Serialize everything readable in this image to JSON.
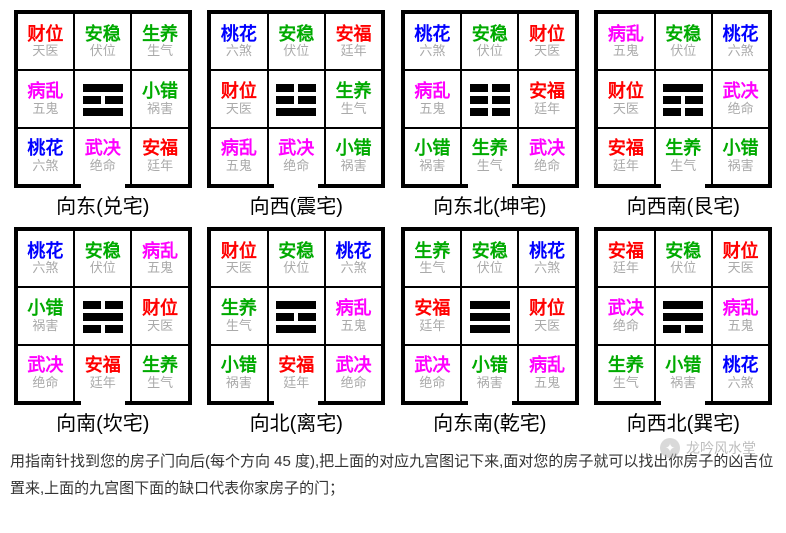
{
  "colors": {
    "red": "#ff0000",
    "green": "#00aa00",
    "blue": "#0000ff",
    "magenta": "#ff00ff",
    "gray": "#aaaaaa",
    "black": "#000000"
  },
  "trigram_bars": {
    "dui": [
      [
        1
      ],
      [
        1,
        1
      ],
      [
        1
      ]
    ],
    "zhen": [
      [
        1,
        1
      ],
      [
        1,
        1
      ],
      [
        1
      ]
    ],
    "kun": [
      [
        1,
        1
      ],
      [
        1,
        1
      ],
      [
        1,
        1
      ]
    ],
    "gen": [
      [
        1
      ],
      [
        1,
        1
      ],
      [
        1,
        1
      ]
    ],
    "kan": [
      [
        1,
        1
      ],
      [
        1
      ],
      [
        1,
        1
      ]
    ],
    "li": [
      [
        1
      ],
      [
        1,
        1
      ],
      [
        1
      ]
    ],
    "qian": [
      [
        1
      ],
      [
        1
      ],
      [
        1
      ]
    ],
    "xun": [
      [
        1
      ],
      [
        1
      ],
      [
        1,
        1
      ]
    ]
  },
  "houses": [
    {
      "label": "向东(兑宅)",
      "trigram_key": "dui",
      "door_side": "bottom",
      "cells": [
        {
          "top": "财位",
          "topColor": "red",
          "bot": "天医"
        },
        {
          "top": "安稳",
          "topColor": "green",
          "bot": "伏位"
        },
        {
          "top": "生养",
          "topColor": "green",
          "bot": "生气"
        },
        {
          "top": "病乱",
          "topColor": "magenta",
          "bot": "五鬼"
        },
        null,
        {
          "top": "小错",
          "topColor": "green",
          "bot": "祸害"
        },
        {
          "top": "桃花",
          "topColor": "blue",
          "bot": "六煞"
        },
        {
          "top": "武决",
          "topColor": "magenta",
          "bot": "绝命"
        },
        {
          "top": "安福",
          "topColor": "red",
          "bot": "廷年"
        }
      ]
    },
    {
      "label": "向西(震宅)",
      "trigram_key": "zhen",
      "door_side": "bottom",
      "cells": [
        {
          "top": "桃花",
          "topColor": "blue",
          "bot": "六煞"
        },
        {
          "top": "安稳",
          "topColor": "green",
          "bot": "伏位"
        },
        {
          "top": "安福",
          "topColor": "red",
          "bot": "廷年"
        },
        {
          "top": "财位",
          "topColor": "red",
          "bot": "天医"
        },
        null,
        {
          "top": "生养",
          "topColor": "green",
          "bot": "生气"
        },
        {
          "top": "病乱",
          "topColor": "magenta",
          "bot": "五鬼"
        },
        {
          "top": "武决",
          "topColor": "magenta",
          "bot": "绝命"
        },
        {
          "top": "小错",
          "topColor": "green",
          "bot": "祸害"
        }
      ]
    },
    {
      "label": "向东北(坤宅)",
      "trigram_key": "kun",
      "door_side": "bottom",
      "cells": [
        {
          "top": "桃花",
          "topColor": "blue",
          "bot": "六煞"
        },
        {
          "top": "安稳",
          "topColor": "green",
          "bot": "伏位"
        },
        {
          "top": "财位",
          "topColor": "red",
          "bot": "天医"
        },
        {
          "top": "病乱",
          "topColor": "magenta",
          "bot": "五鬼"
        },
        null,
        {
          "top": "安福",
          "topColor": "red",
          "bot": "廷年"
        },
        {
          "top": "小错",
          "topColor": "green",
          "bot": "祸害"
        },
        {
          "top": "生养",
          "topColor": "green",
          "bot": "生气"
        },
        {
          "top": "武决",
          "topColor": "magenta",
          "bot": "绝命"
        }
      ]
    },
    {
      "label": "向西南(艮宅)",
      "trigram_key": "gen",
      "door_side": "bottom",
      "cells": [
        {
          "top": "病乱",
          "topColor": "magenta",
          "bot": "五鬼"
        },
        {
          "top": "安稳",
          "topColor": "green",
          "bot": "伏位"
        },
        {
          "top": "桃花",
          "topColor": "blue",
          "bot": "六煞"
        },
        {
          "top": "财位",
          "topColor": "red",
          "bot": "天医"
        },
        null,
        {
          "top": "武决",
          "topColor": "magenta",
          "bot": "绝命"
        },
        {
          "top": "安福",
          "topColor": "red",
          "bot": "廷年"
        },
        {
          "top": "生养",
          "topColor": "green",
          "bot": "生气"
        },
        {
          "top": "小错",
          "topColor": "green",
          "bot": "祸害"
        }
      ]
    },
    {
      "label": "向南(坎宅)",
      "trigram_key": "kan",
      "door_side": "bottom",
      "cells": [
        {
          "top": "桃花",
          "topColor": "blue",
          "bot": "六煞"
        },
        {
          "top": "安稳",
          "topColor": "green",
          "bot": "伏位"
        },
        {
          "top": "病乱",
          "topColor": "magenta",
          "bot": "五鬼"
        },
        {
          "top": "小错",
          "topColor": "green",
          "bot": "祸害"
        },
        null,
        {
          "top": "财位",
          "topColor": "red",
          "bot": "天医"
        },
        {
          "top": "武决",
          "topColor": "magenta",
          "bot": "绝命"
        },
        {
          "top": "安福",
          "topColor": "red",
          "bot": "廷年"
        },
        {
          "top": "生养",
          "topColor": "green",
          "bot": "生气"
        }
      ]
    },
    {
      "label": "向北(离宅)",
      "trigram_key": "li",
      "door_side": "bottom",
      "cells": [
        {
          "top": "财位",
          "topColor": "red",
          "bot": "天医"
        },
        {
          "top": "安稳",
          "topColor": "green",
          "bot": "伏位"
        },
        {
          "top": "桃花",
          "topColor": "blue",
          "bot": "六煞"
        },
        {
          "top": "生养",
          "topColor": "green",
          "bot": "生气"
        },
        null,
        {
          "top": "病乱",
          "topColor": "magenta",
          "bot": "五鬼"
        },
        {
          "top": "小错",
          "topColor": "green",
          "bot": "祸害"
        },
        {
          "top": "安福",
          "topColor": "red",
          "bot": "廷年"
        },
        {
          "top": "武决",
          "topColor": "magenta",
          "bot": "绝命"
        }
      ]
    },
    {
      "label": "向东南(乾宅)",
      "trigram_key": "qian",
      "door_side": "bottom",
      "cells": [
        {
          "top": "生养",
          "topColor": "green",
          "bot": "生气"
        },
        {
          "top": "安稳",
          "topColor": "green",
          "bot": "伏位"
        },
        {
          "top": "桃花",
          "topColor": "blue",
          "bot": "六煞"
        },
        {
          "top": "安福",
          "topColor": "red",
          "bot": "廷年"
        },
        null,
        {
          "top": "财位",
          "topColor": "red",
          "bot": "天医"
        },
        {
          "top": "武决",
          "topColor": "magenta",
          "bot": "绝命"
        },
        {
          "top": "小错",
          "topColor": "green",
          "bot": "祸害"
        },
        {
          "top": "病乱",
          "topColor": "magenta",
          "bot": "五鬼"
        }
      ]
    },
    {
      "label": "向西北(巽宅)",
      "trigram_key": "xun",
      "door_side": "bottom",
      "cells": [
        {
          "top": "安福",
          "topColor": "red",
          "bot": "廷年"
        },
        {
          "top": "安稳",
          "topColor": "green",
          "bot": "伏位"
        },
        {
          "top": "财位",
          "topColor": "red",
          "bot": "天医"
        },
        {
          "top": "武决",
          "topColor": "magenta",
          "bot": "绝命"
        },
        null,
        {
          "top": "病乱",
          "topColor": "magenta",
          "bot": "五鬼"
        },
        {
          "top": "生养",
          "topColor": "green",
          "bot": "生气"
        },
        {
          "top": "小错",
          "topColor": "green",
          "bot": "祸害"
        },
        {
          "top": "桃花",
          "topColor": "blue",
          "bot": "六煞"
        }
      ]
    }
  ],
  "instructions": "用指南针找到您的房子门向后(每个方向 45 度),把上面的对应九宫图记下来,面对您的房子就可以找出你房子的凶吉位置来,上面的九宫图下面的缺口代表你家房子的门；",
  "watermark": {
    "text": "龙吟风水堂"
  }
}
